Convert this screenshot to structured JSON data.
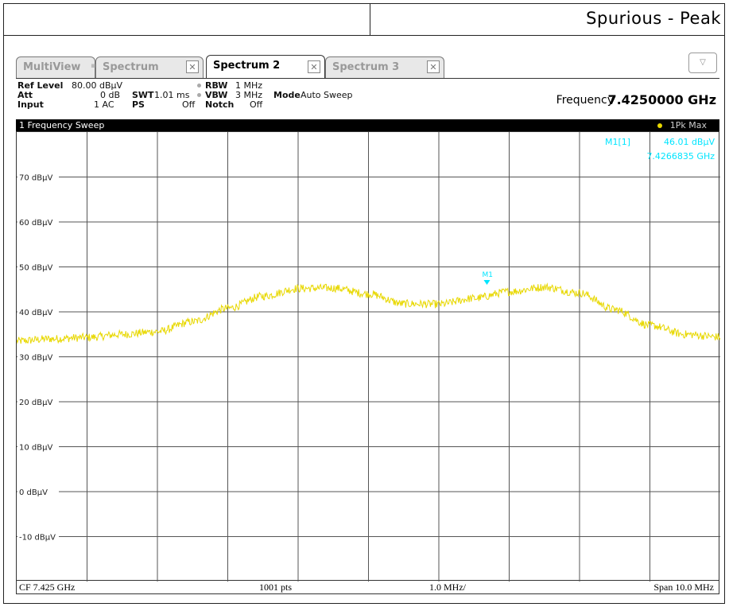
{
  "header": {
    "title": "Spurious - Peak"
  },
  "tabs": [
    {
      "label": "MultiView",
      "active": false
    },
    {
      "label": "Spectrum",
      "active": false
    },
    {
      "label": "Spectrum 2",
      "active": true
    },
    {
      "label": "Spectrum 3",
      "active": false
    }
  ],
  "settings": {
    "ref_level_label": "Ref Level",
    "ref_level_value": "80.00 dBµV",
    "att_label": "Att",
    "att_value": "0 dB",
    "swt_label": "SWT",
    "swt_value": "1.01 ms",
    "input_label": "Input",
    "input_value": "1 AC",
    "ps_label": "PS",
    "ps_value": "Off",
    "rbw_label": "RBW",
    "rbw_value": "1 MHz",
    "vbw_label": "VBW",
    "vbw_value": "3 MHz",
    "notch_label": "Notch",
    "notch_value": "Off",
    "mode_label": "Mode",
    "mode_value": "Auto Sweep",
    "frequency_label": "Frequency",
    "frequency_value": "7.4250000 GHz"
  },
  "sweep": {
    "title": "1 Frequency Sweep",
    "trace_indicator": "1Pk Max",
    "trace_color": "#e8d800"
  },
  "marker": {
    "label": "M1[1]",
    "level": "46.01 dBµV",
    "frequency": "7.4266835 GHz",
    "tag": "M1",
    "color": "#00e5ff"
  },
  "footer": {
    "center_freq": "CF 7.425 GHz",
    "points": "1001 pts",
    "per_div": "1.0 MHz/",
    "span": "Span 10.0 MHz"
  },
  "chart_data": {
    "type": "line",
    "x_unit": "GHz",
    "y_unit": "dBµV",
    "xlim": [
      7.42,
      7.43
    ],
    "ylim": [
      -20,
      80
    ],
    "yticks": [
      70,
      60,
      50,
      40,
      30,
      20,
      10,
      0,
      -10
    ],
    "ytick_labels": [
      "70 dBµV",
      "60 dBµV",
      "50 dBµV",
      "40 dBµV",
      "30 dBµV",
      "20 dBµV",
      "10 dBµV",
      "0 dBµV",
      "-10 dBµV"
    ],
    "grid": true,
    "series": [
      {
        "color": "#e8d800",
        "x": [
          7.42,
          7.4205,
          7.421,
          7.4215,
          7.422,
          7.4225,
          7.423,
          7.4235,
          7.424,
          7.4245,
          7.425,
          7.4255,
          7.426,
          7.4265,
          7.427,
          7.4275,
          7.428,
          7.4285,
          7.429,
          7.4295,
          7.43
        ],
        "y": [
          33.5,
          34.0,
          34.3,
          35.0,
          35.6,
          37.8,
          40.8,
          43.5,
          45.2,
          45.3,
          44.0,
          41.8,
          41.7,
          43.0,
          44.5,
          45.5,
          44.2,
          40.5,
          37.0,
          35.0,
          34.4
        ],
        "noise_db": 0.9
      }
    ],
    "marker": {
      "x": 7.4266835,
      "y": 46.01
    }
  }
}
